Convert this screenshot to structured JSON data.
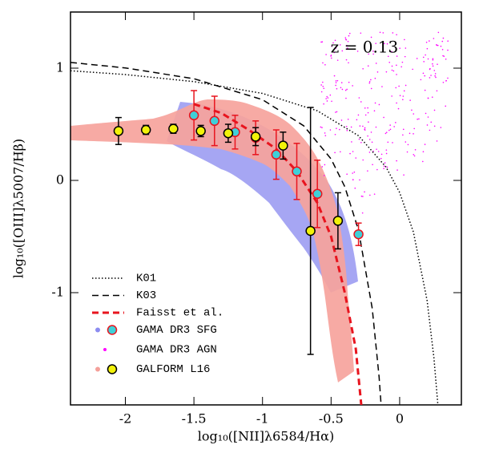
{
  "chart_data": {
    "type": "scatter",
    "annotation": "z = 0.13",
    "x_label": "log₁₀([NII]λ6584/Hα)",
    "y_label": "log₁₀([OIII]λ5007/Hβ)",
    "xlim": [
      -2.4,
      0.45
    ],
    "ylim": [
      -2,
      1.5
    ],
    "xticks": [
      -2,
      -1.5,
      -1,
      -0.5,
      0
    ],
    "yticks": [
      -1,
      0,
      1
    ],
    "legend": "lower left",
    "series": [
      {
        "name": "K01",
        "kind": "line",
        "dash": "dotted",
        "color": "#000000",
        "x": [
          -2.4,
          -2,
          -1.5,
          -1,
          -0.6,
          -0.3,
          -0.1,
          0,
          0.1,
          0.2,
          0.25,
          0.28
        ],
        "values": [
          0.977,
          0.943,
          0.88,
          0.775,
          0.62,
          0.398,
          0.12,
          -0.108,
          -0.459,
          -1.069,
          -1.583,
          -2.02
        ]
      },
      {
        "name": "K03",
        "kind": "line",
        "dash": "dashed",
        "color": "#000000",
        "x": [
          -2.4,
          -2,
          -1.5,
          -1,
          -0.7,
          -0.5,
          -0.4,
          -0.3,
          -0.2,
          -0.15,
          -0.13
        ],
        "values": [
          1.051,
          1.002,
          0.906,
          0.719,
          0.487,
          0.191,
          -0.056,
          -0.443,
          -1.14,
          -1.75,
          -2.09
        ]
      },
      {
        "name": "Faisst et al.",
        "kind": "line",
        "dash": "dashed",
        "color": "#e8141e",
        "x": [
          -1.5,
          -1.3,
          -1.1,
          -0.9,
          -0.75,
          -0.6,
          -0.5,
          -0.4,
          -0.32,
          -0.28
        ],
        "values": [
          0.68,
          0.6,
          0.45,
          0.28,
          0.08,
          -0.2,
          -0.5,
          -1.0,
          -1.5,
          -2.0
        ]
      },
      {
        "name": "GAMA DR3 SFG",
        "kind": "points",
        "color": "#3fd0d8",
        "cloud_color": "#8c8cf0",
        "error_color": "#e8141e",
        "x": [
          -1.5,
          -1.35,
          -1.2,
          -1.05,
          -0.9,
          -0.75,
          -0.6,
          -0.3
        ],
        "values": [
          0.58,
          0.53,
          0.43,
          0.38,
          0.23,
          0.08,
          -0.12,
          -0.48
        ],
        "errors": [
          0.22,
          0.22,
          0.15,
          0.15,
          0.22,
          0.25,
          0.3,
          0.1
        ]
      },
      {
        "name": "GAMA DR3 AGN",
        "kind": "cloud",
        "color": "#ff00ff"
      },
      {
        "name": "GALFORM L16",
        "kind": "points",
        "color": "#f2f20a",
        "cloud_color": "#f4a09a",
        "error_color": "#000000",
        "x": [
          -2.05,
          -1.85,
          -1.65,
          -1.45,
          -1.25,
          -1.05,
          -0.85,
          -0.65,
          -0.45
        ],
        "values": [
          0.44,
          0.45,
          0.46,
          0.44,
          0.42,
          0.39,
          0.31,
          -0.45,
          -0.36
        ],
        "errors": [
          0.12,
          0.04,
          0.04,
          0.05,
          0.08,
          0.08,
          0.12,
          1.1,
          0.25
        ]
      }
    ]
  }
}
